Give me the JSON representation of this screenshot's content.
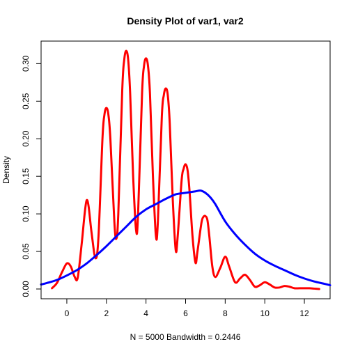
{
  "chart_data": {
    "type": "line",
    "title": "Density Plot of var1, var2",
    "xlabel": "N = 5000   Bandwidth = 0.2446",
    "ylabel": "Density",
    "xlim": [
      -1.3,
      13.3
    ],
    "ylim": [
      -0.013,
      0.33
    ],
    "x_ticks": [
      "0",
      "2",
      "4",
      "6",
      "8",
      "10",
      "12"
    ],
    "y_ticks": [
      "0.00",
      "0.05",
      "0.10",
      "0.15",
      "0.20",
      "0.25",
      "0.30"
    ],
    "grid": false,
    "legend": "none",
    "series": [
      {
        "color": "#ff0000",
        "x": [
          -0.75,
          -0.5,
          -0.25,
          0.0,
          0.2,
          0.4,
          0.55,
          0.75,
          0.9,
          1.0,
          1.1,
          1.25,
          1.45,
          1.6,
          1.8,
          1.9,
          2.0,
          2.1,
          2.2,
          2.4,
          2.5,
          2.6,
          2.8,
          2.9,
          3.0,
          3.1,
          3.2,
          3.35,
          3.5,
          3.6,
          3.8,
          3.9,
          4.0,
          4.1,
          4.2,
          4.35,
          4.5,
          4.6,
          4.8,
          4.9,
          5.0,
          5.1,
          5.2,
          5.35,
          5.5,
          5.6,
          5.8,
          5.9,
          6.0,
          6.1,
          6.2,
          6.35,
          6.5,
          6.6,
          6.8,
          6.9,
          7.0,
          7.1,
          7.2,
          7.35,
          7.5,
          7.75,
          8.0,
          8.2,
          8.5,
          8.75,
          9.0,
          9.25,
          9.5,
          9.75,
          10.0,
          10.25,
          10.5,
          10.75,
          11.0,
          11.25,
          11.5,
          11.75,
          12.0,
          12.25,
          12.5,
          12.75
        ],
        "y": [
          0.001,
          0.008,
          0.022,
          0.034,
          0.03,
          0.016,
          0.015,
          0.06,
          0.1,
          0.118,
          0.11,
          0.075,
          0.041,
          0.07,
          0.2,
          0.232,
          0.241,
          0.232,
          0.2,
          0.09,
          0.067,
          0.1,
          0.265,
          0.305,
          0.317,
          0.305,
          0.26,
          0.15,
          0.078,
          0.1,
          0.26,
          0.297,
          0.307,
          0.297,
          0.26,
          0.15,
          0.071,
          0.09,
          0.23,
          0.258,
          0.267,
          0.258,
          0.22,
          0.12,
          0.052,
          0.07,
          0.145,
          0.16,
          0.166,
          0.158,
          0.13,
          0.07,
          0.035,
          0.05,
          0.088,
          0.096,
          0.097,
          0.092,
          0.07,
          0.03,
          0.016,
          0.028,
          0.043,
          0.03,
          0.009,
          0.014,
          0.019,
          0.012,
          0.003,
          0.005,
          0.009,
          0.006,
          0.002,
          0.002,
          0.004,
          0.003,
          0.001,
          0.001,
          0.001,
          0.001,
          0.0005,
          0.0
        ]
      },
      {
        "color": "#0000ff",
        "x": [
          -1.3,
          -1.0,
          -0.5,
          0.0,
          0.5,
          1.0,
          1.5,
          2.0,
          2.5,
          3.0,
          3.5,
          4.0,
          4.5,
          5.0,
          5.5,
          6.0,
          6.5,
          6.75,
          7.0,
          7.25,
          7.5,
          8.0,
          8.5,
          9.0,
          9.5,
          10.0,
          10.5,
          11.0,
          11.5,
          12.0,
          12.5,
          13.0,
          13.3
        ],
        "y": [
          0.006,
          0.008,
          0.012,
          0.018,
          0.025,
          0.034,
          0.045,
          0.057,
          0.07,
          0.083,
          0.096,
          0.106,
          0.113,
          0.12,
          0.126,
          0.128,
          0.13,
          0.131,
          0.128,
          0.122,
          0.113,
          0.09,
          0.073,
          0.059,
          0.047,
          0.038,
          0.031,
          0.025,
          0.019,
          0.014,
          0.01,
          0.007,
          0.005
        ]
      }
    ]
  }
}
